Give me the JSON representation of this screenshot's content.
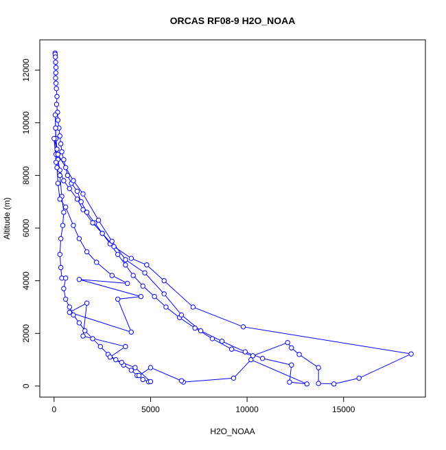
{
  "chart_data": {
    "type": "line",
    "title": "ORCAS RF08-9 H2O_NOAA",
    "x_label": "H2O_NOAA",
    "y_label": "Altitude (m)",
    "color": "#0000ff",
    "markers": true,
    "xlim": [
      -740,
      19240
    ],
    "ylim": [
      -420,
      13150
    ],
    "xticks": [
      0,
      5000,
      10000,
      15000
    ],
    "yticks": [
      0,
      2000,
      4000,
      6000,
      8000,
      10000,
      12000
    ],
    "x": [
      50,
      60,
      70,
      80,
      100,
      90,
      80,
      100,
      120,
      150,
      130,
      180,
      200,
      250,
      300,
      350,
      400,
      500,
      600,
      700,
      900,
      1200,
      1400,
      1700,
      2100,
      2500,
      2900,
      3300,
      3700,
      4100,
      4600,
      5200,
      5800,
      6500,
      7300,
      8200,
      9200,
      10300,
      12100,
      12300,
      12700,
      13700,
      13700,
      14500,
      15800,
      18500,
      9800,
      7200,
      5700,
      4800,
      4000,
      3100,
      2500,
      2000,
      1500,
      1200,
      800,
      500,
      300,
      200,
      150,
      100,
      80,
      60,
      100,
      300,
      400,
      500,
      450,
      350,
      300,
      350,
      400,
      600,
      500,
      600,
      800,
      1000,
      1300,
      1600,
      2000,
      2400,
      2800,
      3200,
      3600,
      4000,
      4300,
      4600,
      4900,
      5000,
      4200,
      3500,
      2900,
      3700,
      1500,
      1700,
      800,
      4000,
      3300,
      4500,
      1300,
      3800,
      3000,
      2200,
      1700,
      1300,
      1000,
      600,
      300,
      200,
      150,
      100,
      0,
      200,
      1000,
      1500,
      2300,
      3000,
      3700,
      4700,
      5700,
      6600,
      7600,
      8700,
      9900,
      10800,
      12300,
      12200,
      13100,
      10200,
      9300,
      6700,
      6600,
      5000,
      4400
    ],
    "values": [
      12650,
      12600,
      12500,
      12300,
      12100,
      11900,
      11700,
      11500,
      11300,
      11000,
      10700,
      10400,
      10100,
      9800,
      9500,
      9200,
      8900,
      8600,
      8300,
      8000,
      7700,
      7400,
      7000,
      6600,
      6200,
      5800,
      5400,
      5000,
      4600,
      4200,
      3800,
      3400,
      3000,
      2600,
      2200,
      1800,
      1400,
      1150,
      1650,
      1450,
      1200,
      700,
      100,
      80,
      300,
      1220,
      2250,
      3000,
      4000,
      4600,
      4850,
      5300,
      5800,
      6200,
      6700,
      7100,
      7500,
      7800,
      8200,
      8600,
      9000,
      9400,
      9800,
      10300,
      8800,
      8000,
      7200,
      6600,
      6100,
      5600,
      5000,
      4500,
      4100,
      4100,
      3700,
      3300,
      3000,
      2700,
      2400,
      2100,
      1800,
      1500,
      1200,
      1000,
      800,
      600,
      400,
      250,
      160,
      170,
      700,
      900,
      1100,
      1500,
      1900,
      3150,
      2800,
      2050,
      3300,
      3400,
      4050,
      3900,
      4200,
      4700,
      5100,
      5600,
      6100,
      6800,
      7100,
      7700,
      8300,
      8500,
      9400,
      8800,
      7800,
      7300,
      6300,
      5500,
      4800,
      4300,
      3500,
      2700,
      2100,
      1700,
      1300,
      1050,
      800,
      150,
      80,
      1000,
      300,
      150,
      200,
      700,
      400
    ]
  }
}
